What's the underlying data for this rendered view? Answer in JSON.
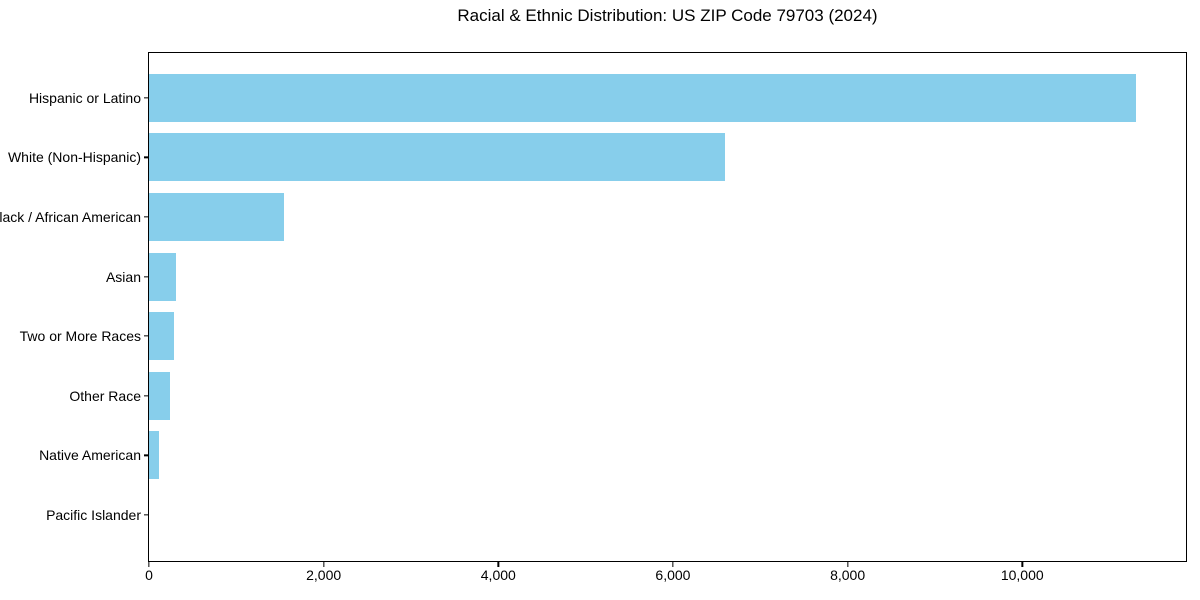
{
  "title": "Racial & Ethnic Distribution: US ZIP Code 79703 (2024)",
  "colors": {
    "bar": "#87CEEB",
    "axis": "#000000",
    "text": "#000000",
    "background": "#ffffff"
  },
  "chart_data": {
    "type": "bar",
    "orientation": "horizontal",
    "title": "Racial & Ethnic Distribution: US ZIP Code 79703 (2024)",
    "categories": [
      "Hispanic or Latino",
      "White (Non-Hispanic)",
      "Black / African American",
      "Asian",
      "Two or More Races",
      "Other Race",
      "Native American",
      "Pacific Islander"
    ],
    "values": [
      11300,
      6600,
      1550,
      310,
      290,
      240,
      115,
      0
    ],
    "xlabel": "",
    "ylabel": "",
    "xlim": [
      0,
      11875
    ],
    "xticks": [
      0,
      2000,
      4000,
      6000,
      8000,
      10000
    ],
    "xtick_labels": [
      "0",
      "2,000",
      "4,000",
      "6,000",
      "8,000",
      "10,000"
    ],
    "bar_color": "#87CEEB",
    "grid": false,
    "legend": null
  }
}
